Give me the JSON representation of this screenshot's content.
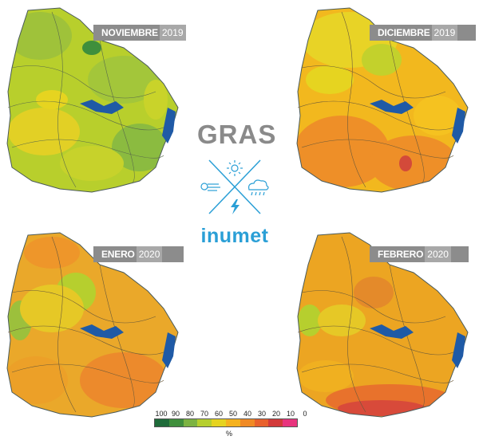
{
  "title": "GRAS",
  "brand": "inumet",
  "maps": [
    {
      "month": "NOVIEMBRE",
      "year": "2019",
      "theme": "wet"
    },
    {
      "month": "DICIEMBRE",
      "year": "2019",
      "theme": "dry"
    },
    {
      "month": "ENERO",
      "year": "2020",
      "theme": "mid"
    },
    {
      "month": "FEBRERO",
      "year": "2020",
      "theme": "dry2"
    }
  ],
  "legend": {
    "labels": [
      "100",
      "90",
      "80",
      "70",
      "60",
      "50",
      "40",
      "30",
      "20",
      "10",
      "0"
    ],
    "unit": "%",
    "colors": [
      "#1e6b3a",
      "#3f8f3c",
      "#7cb342",
      "#b6cf2e",
      "#e6d420",
      "#f5b21e",
      "#f08a24",
      "#e8612c",
      "#d23a3a",
      "#e8347e"
    ]
  },
  "icons": [
    "sun-icon",
    "wind-icon",
    "rain-cloud-icon",
    "lightning-icon"
  ]
}
